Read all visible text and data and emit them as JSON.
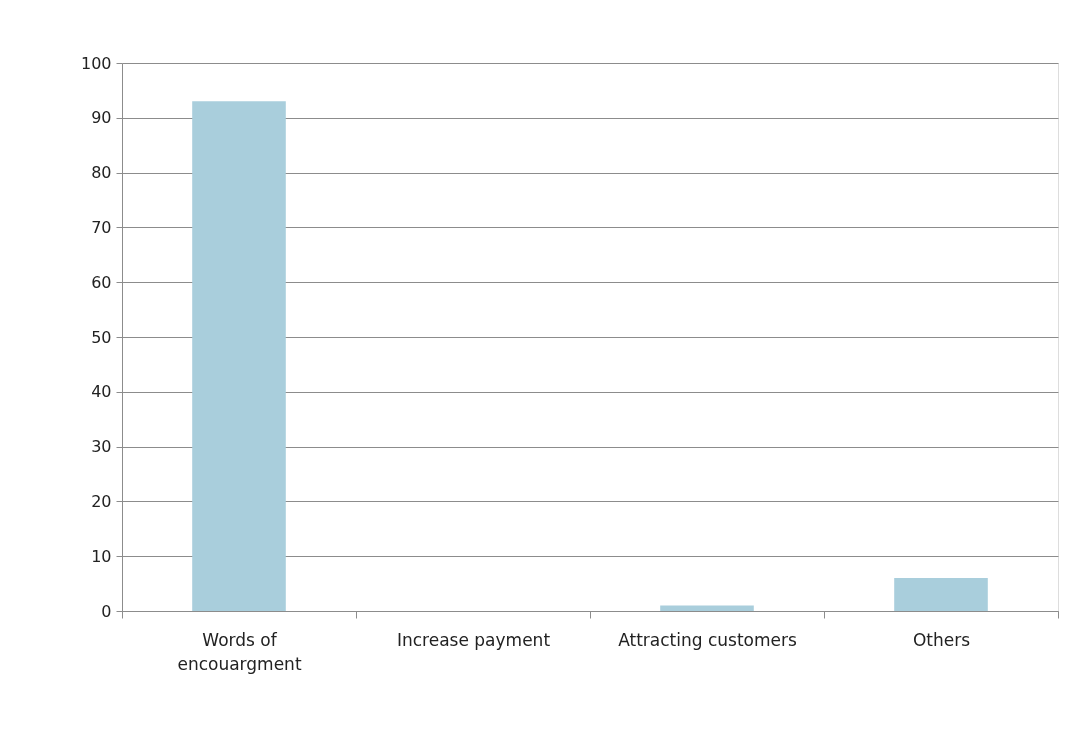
{
  "chart_data": {
    "type": "bar",
    "categories": [
      "Words of encouargment",
      "Increase payment",
      "Attracting customers",
      "Others"
    ],
    "values": [
      93,
      0,
      1,
      6
    ],
    "color": "#a9cedc",
    "ylim": [
      0,
      100
    ],
    "yticks": [
      0,
      10,
      20,
      30,
      40,
      50,
      60,
      70,
      80,
      90,
      100
    ],
    "grid": "y"
  }
}
